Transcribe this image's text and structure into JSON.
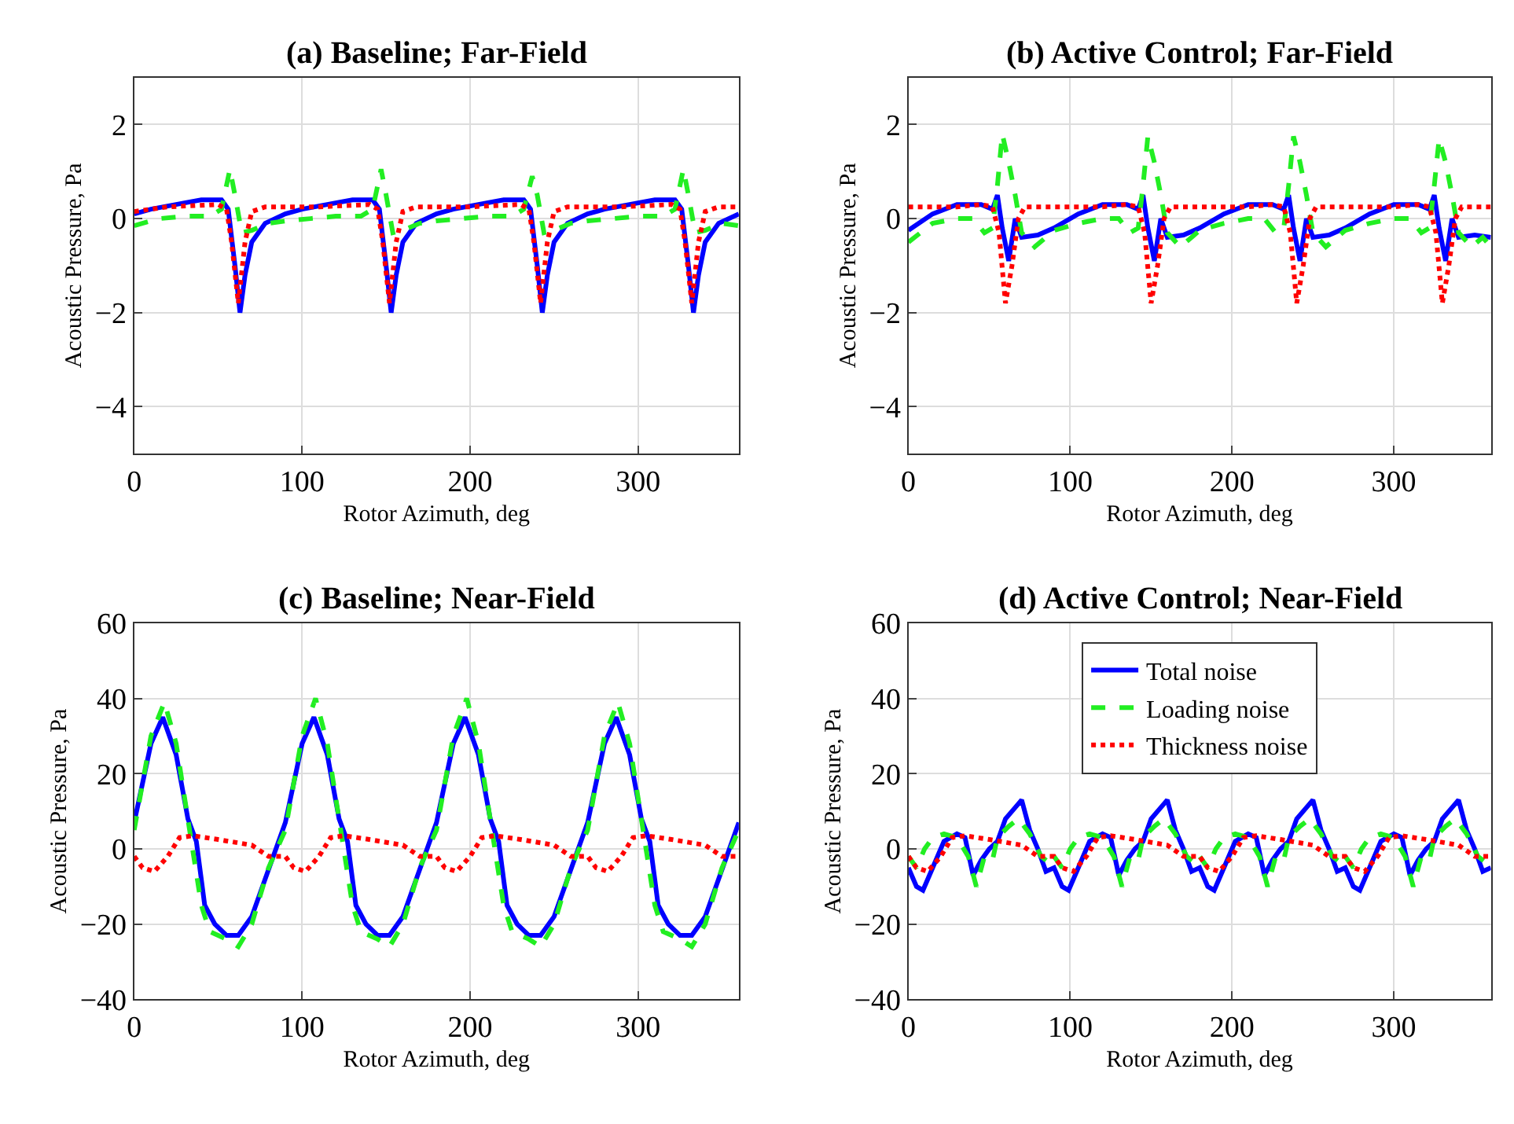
{
  "chart_data": [
    {
      "type": "line",
      "title": "(a) Baseline; Far-Field",
      "xlabel": "Rotor Azimuth, deg",
      "ylabel": "Acoustic Pressure, Pa",
      "xlim": [
        0,
        360
      ],
      "xticks": [
        0,
        100,
        200,
        300
      ],
      "ylim": [
        -5,
        3
      ],
      "yticks": [
        -4,
        -2,
        0,
        2
      ],
      "grid": true,
      "legend": false,
      "series": [
        {
          "color": "#0000ff",
          "line_style": "solid",
          "x": [
            0,
            10,
            25,
            40,
            52,
            56,
            60,
            63,
            66,
            70,
            78,
            90,
            100,
            115,
            130,
            142,
            146,
            150,
            153,
            156,
            160,
            168,
            180,
            190,
            205,
            220,
            232,
            236,
            240,
            243,
            246,
            250,
            258,
            270,
            280,
            295,
            310,
            322,
            326,
            330,
            333,
            336,
            340,
            348,
            360
          ],
          "values": [
            0.1,
            0.2,
            0.3,
            0.4,
            0.4,
            0.2,
            -1.0,
            -2.0,
            -1.2,
            -0.5,
            -0.1,
            0.1,
            0.2,
            0.3,
            0.4,
            0.4,
            0.2,
            -1.0,
            -2.0,
            -1.2,
            -0.5,
            -0.1,
            0.1,
            0.2,
            0.3,
            0.4,
            0.4,
            0.2,
            -1.0,
            -2.0,
            -1.2,
            -0.5,
            -0.1,
            0.1,
            0.2,
            0.3,
            0.4,
            0.4,
            0.2,
            -1.0,
            -2.0,
            -1.2,
            -0.5,
            -0.1,
            0.1
          ]
        },
        {
          "color": "#22ee22",
          "line_style": "dashed",
          "x": [
            0,
            15,
            30,
            45,
            52,
            57,
            60,
            64,
            70,
            80,
            90,
            105,
            120,
            135,
            142,
            147,
            150,
            154,
            160,
            170,
            180,
            195,
            210,
            225,
            232,
            237,
            240,
            244,
            250,
            260,
            270,
            285,
            300,
            315,
            322,
            327,
            330,
            334,
            340,
            350,
            360
          ],
          "values": [
            -0.15,
            0.0,
            0.05,
            0.05,
            0.2,
            1.05,
            0.5,
            -0.3,
            -0.25,
            -0.1,
            -0.05,
            0.0,
            0.05,
            0.05,
            0.2,
            1.05,
            0.5,
            -0.3,
            -0.25,
            -0.1,
            -0.05,
            0.0,
            0.05,
            0.05,
            0.2,
            0.9,
            0.5,
            -0.3,
            -0.25,
            -0.1,
            -0.05,
            0.0,
            0.05,
            0.05,
            0.2,
            1.05,
            0.5,
            -0.3,
            -0.25,
            -0.1,
            -0.15
          ]
        },
        {
          "color": "#ff0000",
          "line_style": "dotted",
          "x": [
            0,
            20,
            50,
            55,
            58,
            62,
            66,
            70,
            78,
            90,
            110,
            140,
            145,
            148,
            152,
            156,
            160,
            168,
            180,
            200,
            230,
            235,
            238,
            242,
            246,
            250,
            258,
            270,
            290,
            320,
            325,
            328,
            332,
            336,
            340,
            348,
            360
          ],
          "values": [
            0.15,
            0.25,
            0.3,
            0.2,
            -0.5,
            -1.8,
            -0.5,
            0.15,
            0.25,
            0.25,
            0.25,
            0.3,
            0.2,
            -0.5,
            -1.8,
            -0.5,
            0.15,
            0.25,
            0.25,
            0.25,
            0.3,
            0.2,
            -0.5,
            -1.8,
            -0.5,
            0.15,
            0.25,
            0.25,
            0.25,
            0.3,
            0.2,
            -0.5,
            -1.8,
            -0.5,
            0.15,
            0.25,
            0.25
          ]
        }
      ]
    },
    {
      "type": "line",
      "title": "(b) Active Control; Far-Field",
      "xlabel": "Rotor Azimuth, deg",
      "ylabel": "Acoustic Pressure, Pa",
      "xlim": [
        0,
        360
      ],
      "xticks": [
        0,
        100,
        200,
        300
      ],
      "ylim": [
        -5,
        3
      ],
      "yticks": [
        -4,
        -2,
        0,
        2
      ],
      "grid": true,
      "legend": false,
      "series": [
        {
          "color": "#0000ff",
          "line_style": "solid",
          "x": [
            0,
            15,
            30,
            45,
            52,
            55,
            58,
            62,
            66,
            70,
            80,
            90,
            105,
            120,
            135,
            142,
            145,
            148,
            152,
            156,
            160,
            170,
            180,
            195,
            210,
            225,
            232,
            235,
            238,
            242,
            246,
            250,
            260,
            270,
            285,
            300,
            315,
            322,
            325,
            328,
            332,
            336,
            340,
            350,
            360
          ],
          "values": [
            -0.25,
            0.1,
            0.3,
            0.3,
            0.2,
            0.5,
            -0.2,
            -0.9,
            0.0,
            -0.4,
            -0.35,
            -0.2,
            0.1,
            0.3,
            0.3,
            0.2,
            0.5,
            -0.2,
            -0.9,
            0.0,
            -0.4,
            -0.35,
            -0.2,
            0.1,
            0.3,
            0.3,
            0.2,
            0.5,
            -0.2,
            -0.9,
            0.0,
            -0.4,
            -0.35,
            -0.2,
            0.1,
            0.3,
            0.3,
            0.2,
            0.5,
            -0.2,
            -0.9,
            0.0,
            -0.4,
            -0.35,
            -0.4
          ]
        },
        {
          "color": "#22ee22",
          "line_style": "dashed",
          "x": [
            0,
            15,
            30,
            40,
            47,
            52,
            55,
            58,
            62,
            66,
            70,
            78,
            85,
            90,
            105,
            120,
            130,
            137,
            142,
            145,
            148,
            152,
            156,
            160,
            168,
            175,
            180,
            195,
            210,
            220,
            227,
            232,
            235,
            238,
            242,
            246,
            250,
            258,
            265,
            270,
            285,
            300,
            310,
            317,
            322,
            325,
            328,
            332,
            336,
            340,
            348,
            355,
            360
          ],
          "values": [
            -0.5,
            -0.1,
            0.0,
            0.0,
            -0.3,
            -0.2,
            0.7,
            1.8,
            1.2,
            0.5,
            -0.3,
            -0.6,
            -0.4,
            -0.25,
            -0.1,
            0.0,
            0.0,
            -0.3,
            -0.2,
            0.7,
            1.75,
            1.2,
            0.5,
            -0.3,
            -0.6,
            -0.4,
            -0.25,
            -0.1,
            0.0,
            0.0,
            -0.3,
            -0.2,
            0.7,
            1.75,
            1.2,
            0.5,
            -0.3,
            -0.6,
            -0.4,
            -0.25,
            -0.1,
            0.0,
            0.0,
            -0.3,
            -0.2,
            0.7,
            1.7,
            1.2,
            0.5,
            -0.3,
            -0.6,
            -0.4,
            -0.6
          ]
        },
        {
          "color": "#ff0000",
          "line_style": "dotted",
          "x": [
            0,
            30,
            45,
            52,
            56,
            60,
            64,
            68,
            72,
            90,
            120,
            135,
            142,
            146,
            150,
            154,
            158,
            162,
            180,
            210,
            225,
            232,
            236,
            240,
            244,
            248,
            252,
            270,
            300,
            315,
            322,
            326,
            330,
            334,
            338,
            342,
            360
          ],
          "values": [
            0.25,
            0.25,
            0.3,
            0.25,
            -0.3,
            -1.8,
            -1.0,
            0.0,
            0.25,
            0.25,
            0.25,
            0.3,
            0.25,
            -0.3,
            -1.8,
            -1.0,
            0.0,
            0.25,
            0.25,
            0.25,
            0.3,
            0.25,
            -0.3,
            -1.8,
            -1.0,
            0.0,
            0.25,
            0.25,
            0.25,
            0.3,
            0.25,
            -0.3,
            -1.8,
            -1.0,
            0.0,
            0.25,
            0.25
          ]
        }
      ]
    },
    {
      "type": "line",
      "title": "(c) Baseline; Near-Field",
      "xlabel": "Rotor Azimuth, deg",
      "ylabel": "Acoustic Pressure, Pa",
      "xlim": [
        0,
        360
      ],
      "xticks": [
        0,
        100,
        200,
        300
      ],
      "ylim": [
        -40,
        60
      ],
      "yticks": [
        -40,
        -20,
        0,
        20,
        40,
        60
      ],
      "grid": true,
      "legend": false,
      "series": [
        {
          "color": "#0000ff",
          "line_style": "solid",
          "x": [
            0,
            10,
            17,
            25,
            32,
            37,
            42,
            48,
            55,
            62,
            70,
            78,
            90,
            100,
            107,
            115,
            122,
            127,
            132,
            138,
            145,
            152,
            160,
            168,
            180,
            190,
            197,
            205,
            212,
            217,
            222,
            228,
            235,
            242,
            250,
            258,
            270,
            280,
            287,
            295,
            302,
            307,
            312,
            318,
            325,
            332,
            340,
            348,
            360
          ],
          "values": [
            7,
            28,
            35,
            25,
            8,
            2,
            -15,
            -20,
            -23,
            -23,
            -18,
            -8,
            7,
            28,
            35,
            25,
            8,
            2,
            -15,
            -20,
            -23,
            -23,
            -18,
            -8,
            7,
            28,
            35,
            25,
            8,
            2,
            -15,
            -20,
            -23,
            -23,
            -18,
            -8,
            7,
            28,
            35,
            25,
            8,
            2,
            -15,
            -20,
            -23,
            -23,
            -18,
            -8,
            7
          ]
        },
        {
          "color": "#22ee22",
          "line_style": "dashed",
          "x": [
            0,
            10,
            18,
            25,
            33,
            40,
            45,
            55,
            62,
            70,
            80,
            90,
            100,
            108,
            115,
            123,
            130,
            135,
            145,
            152,
            160,
            170,
            180,
            190,
            198,
            205,
            213,
            220,
            225,
            235,
            242,
            250,
            260,
            270,
            280,
            288,
            295,
            303,
            310,
            315,
            325,
            332,
            340,
            350,
            360
          ],
          "values": [
            5,
            30,
            39,
            28,
            5,
            -15,
            -22,
            -24,
            -26,
            -20,
            -5,
            5,
            30,
            40,
            28,
            5,
            -15,
            -22,
            -24,
            -26,
            -20,
            -5,
            5,
            30,
            40,
            28,
            5,
            -15,
            -22,
            -24,
            -26,
            -20,
            -5,
            5,
            30,
            39,
            28,
            5,
            -15,
            -22,
            -24,
            -26,
            -20,
            -5,
            5
          ]
        },
        {
          "color": "#ff0000",
          "line_style": "dotted",
          "x": [
            0,
            5,
            12,
            20,
            27,
            35,
            50,
            70,
            80,
            90,
            95,
            102,
            110,
            117,
            125,
            140,
            160,
            170,
            180,
            185,
            192,
            200,
            207,
            215,
            230,
            250,
            260,
            270,
            275,
            282,
            290,
            297,
            305,
            320,
            340,
            350,
            360
          ],
          "values": [
            -2,
            -5,
            -6,
            -2,
            3,
            3.5,
            2.5,
            1,
            -2,
            -2,
            -5,
            -6,
            -2,
            3,
            3.5,
            2.5,
            1,
            -2,
            -2,
            -5,
            -6,
            -2,
            3,
            3.5,
            2.5,
            1,
            -2,
            -2,
            -5,
            -6,
            -2,
            3,
            3.5,
            2.5,
            1,
            -2,
            -2
          ]
        }
      ]
    },
    {
      "type": "line",
      "title": "(d) Active Control; Near-Field",
      "xlabel": "Rotor Azimuth, deg",
      "ylabel": "Acoustic Pressure, Pa",
      "xlim": [
        0,
        360
      ],
      "xticks": [
        0,
        100,
        200,
        300
      ],
      "ylim": [
        -40,
        60
      ],
      "yticks": [
        -40,
        -20,
        0,
        20,
        40,
        60
      ],
      "grid": true,
      "legend": "top",
      "series": [
        {
          "name": "Total noise",
          "color": "#0000ff",
          "line_style": "solid",
          "x": [
            0,
            5,
            9,
            15,
            22,
            30,
            35,
            40,
            45,
            50,
            55,
            60,
            66,
            70,
            75,
            80,
            85,
            90,
            95,
            99,
            105,
            112,
            120,
            125,
            130,
            135,
            140,
            145,
            150,
            156,
            160,
            165,
            170,
            175,
            180,
            185,
            189,
            195,
            202,
            210,
            215,
            220,
            225,
            230,
            235,
            240,
            246,
            250,
            255,
            260,
            265,
            270,
            275,
            279,
            285,
            292,
            300,
            305,
            310,
            315,
            320,
            325,
            330,
            336,
            340,
            345,
            350,
            355,
            360
          ],
          "values": [
            -5,
            -10,
            -11,
            -5,
            2,
            4,
            3,
            -7,
            -3,
            0,
            2,
            8,
            11,
            13,
            5,
            0,
            -6,
            -5,
            -10,
            -11,
            -5,
            2,
            4,
            3,
            -7,
            -3,
            0,
            2,
            8,
            11,
            13,
            5,
            0,
            -6,
            -5,
            -10,
            -11,
            -5,
            2,
            4,
            3,
            -7,
            -3,
            0,
            2,
            8,
            11,
            13,
            5,
            0,
            -6,
            -5,
            -10,
            -11,
            -5,
            2,
            4,
            3,
            -7,
            -3,
            0,
            2,
            8,
            11,
            13,
            5,
            0,
            -6,
            -5
          ]
        },
        {
          "name": "Loading noise",
          "color": "#22ee22",
          "line_style": "dashed",
          "x": [
            0,
            5,
            10,
            15,
            22,
            30,
            37,
            42,
            47,
            52,
            55,
            62,
            68,
            75,
            82,
            88,
            90,
            95,
            100,
            105,
            112,
            120,
            127,
            132,
            137,
            142,
            145,
            152,
            158,
            165,
            172,
            178,
            180,
            185,
            190,
            195,
            202,
            210,
            217,
            222,
            227,
            232,
            235,
            242,
            248,
            255,
            262,
            268,
            270,
            275,
            280,
            285,
            292,
            300,
            307,
            312,
            317,
            322,
            325,
            332,
            338,
            345,
            352,
            358,
            360
          ],
          "values": [
            -2,
            -5,
            0,
            3,
            4,
            3,
            -2,
            -10,
            -2,
            -3,
            3,
            6,
            8,
            4,
            -2,
            -4,
            -2,
            -5,
            0,
            3,
            4,
            3,
            -2,
            -10,
            -2,
            -3,
            3,
            6,
            8,
            4,
            -2,
            -4,
            -2,
            -5,
            0,
            3,
            4,
            3,
            -2,
            -10,
            -2,
            -3,
            3,
            6,
            8,
            4,
            -2,
            -4,
            -2,
            -5,
            0,
            3,
            4,
            3,
            -2,
            -10,
            -2,
            -3,
            3,
            6,
            8,
            4,
            -2,
            -4,
            -2
          ]
        },
        {
          "name": "Thickness noise",
          "color": "#ff0000",
          "line_style": "dotted",
          "x": [
            0,
            5,
            12,
            20,
            27,
            35,
            50,
            70,
            80,
            90,
            95,
            102,
            110,
            117,
            125,
            140,
            160,
            170,
            180,
            185,
            192,
            200,
            207,
            215,
            230,
            250,
            260,
            270,
            275,
            282,
            290,
            297,
            305,
            320,
            340,
            350,
            360
          ],
          "values": [
            -2,
            -5,
            -6,
            -2,
            3,
            3.5,
            2.5,
            1,
            -2,
            -2,
            -5,
            -6,
            -2,
            3,
            3.5,
            2.5,
            1,
            -2,
            -2,
            -5,
            -6,
            -2,
            3,
            3.5,
            2.5,
            1,
            -2,
            -2,
            -5,
            -6,
            -2,
            3,
            3.5,
            2.5,
            1,
            -2,
            -2
          ]
        }
      ]
    }
  ]
}
